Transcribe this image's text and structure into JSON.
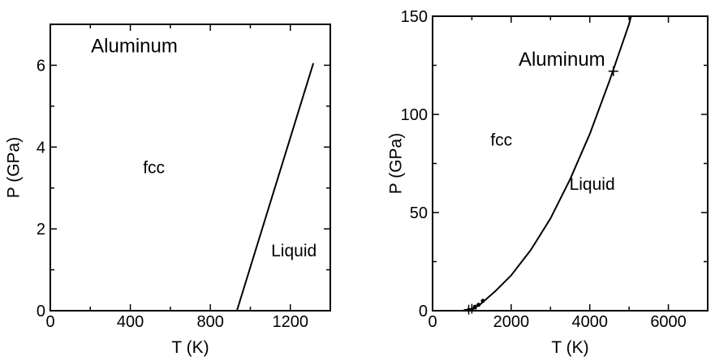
{
  "chart_data": [
    {
      "type": "line",
      "title": "Aluminum",
      "xlabel": "T (K)",
      "ylabel": "P (GPa)",
      "xlim": [
        0,
        1400
      ],
      "ylim": [
        0,
        7
      ],
      "xticks": [
        0,
        400,
        800,
        1200
      ],
      "yticks": [
        0,
        2,
        4,
        6
      ],
      "region_labels": [
        "fcc",
        "Liquid"
      ],
      "series": [
        {
          "x": [
            933,
            1315
          ],
          "y": [
            0,
            6.05
          ]
        }
      ],
      "grid": false
    },
    {
      "type": "line",
      "title": "Aluminum",
      "xlabel": "T (K)",
      "ylabel": "P (GPa)",
      "xlim": [
        0,
        7000
      ],
      "ylim": [
        0,
        150
      ],
      "xticks": [
        0,
        2000,
        4000,
        6000
      ],
      "yticks": [
        0,
        50,
        100,
        150
      ],
      "region_labels": [
        "fcc",
        "Liquid"
      ],
      "series": [
        {
          "x": [
            933,
            1200,
            1600,
            2000,
            2500,
            3000,
            3500,
            4000,
            4500,
            5000,
            5050
          ],
          "y": [
            0,
            3,
            10,
            18,
            31,
            47,
            67,
            90,
            117,
            146,
            150
          ]
        }
      ],
      "points": [
        {
          "x": 920,
          "y": 0.5,
          "marker": "+"
        },
        {
          "x": 1000,
          "y": 1,
          "marker": "+"
        },
        {
          "x": 1080,
          "y": 2,
          "marker": "dot"
        },
        {
          "x": 1170,
          "y": 3,
          "marker": "dot"
        },
        {
          "x": 1280,
          "y": 5,
          "marker": "dot"
        },
        {
          "x": 4600,
          "y": 122,
          "marker": "+"
        }
      ],
      "grid": false
    }
  ]
}
